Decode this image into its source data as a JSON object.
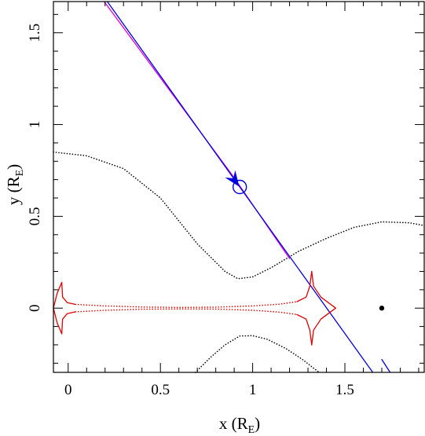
{
  "chart_data": {
    "type": "line",
    "xlabel": "x (R",
    "xlabel_sub": "E",
    "xlabel_close": ")",
    "ylabel": "y (R",
    "ylabel_sub": "E",
    "ylabel_close": ")",
    "xlim": [
      -0.08,
      1.93
    ],
    "ylim": [
      -0.35,
      1.67
    ],
    "grid": false,
    "x_ticks": [
      0,
      0.5,
      1,
      1.5
    ],
    "x_tick_labels": [
      "0",
      "0.5",
      "1",
      "1.5"
    ],
    "y_ticks": [
      0,
      0.5,
      1,
      1.5
    ],
    "y_tick_labels": [
      "0",
      "0.5",
      "1",
      "1.5"
    ],
    "series": [
      {
        "style": "dotted-black",
        "color": "#000000",
        "x": [
          -0.08,
          0.1,
          0.3,
          0.5,
          0.7,
          0.85,
          0.92,
          1.0,
          1.1,
          1.25,
          1.4,
          1.55,
          1.7,
          1.85,
          1.93
        ],
        "y": [
          0.85,
          0.83,
          0.76,
          0.6,
          0.35,
          0.2,
          0.16,
          0.17,
          0.22,
          0.31,
          0.38,
          0.44,
          0.47,
          0.465,
          0.45
        ]
      },
      {
        "style": "dotted-black",
        "color": "#000000",
        "x": [
          0.69,
          0.77,
          0.85,
          0.93,
          1.0,
          1.08,
          1.18,
          1.27,
          1.36
        ],
        "y": [
          -0.35,
          -0.27,
          -0.2,
          -0.152,
          -0.15,
          -0.17,
          -0.22,
          -0.28,
          -0.35
        ]
      },
      {
        "style": "solid-magenta",
        "color": "#dd00dd",
        "x": [
          0.195,
          0.9,
          1.2
        ],
        "y": [
          1.67,
          0.71,
          0.27
        ]
      },
      {
        "style": "solid-blue",
        "color": "#0000dd",
        "x": [
          0.212,
          0.93,
          1.651
        ],
        "y": [
          1.67,
          0.66,
          -0.35
        ]
      },
      {
        "style": "solid-blue",
        "color": "#0000dd",
        "x": [
          1.7,
          1.745
        ],
        "y": [
          -0.28,
          -0.35
        ]
      },
      {
        "style": "solid-red",
        "color": "#dd0000",
        "x": [
          -0.035,
          -0.06,
          -0.08,
          -0.06,
          -0.035
        ],
        "y": [
          0.14,
          0.08,
          0.0,
          -0.08,
          -0.14
        ]
      },
      {
        "style": "solid-red",
        "color": "#dd0000",
        "x": [
          -0.035,
          -0.03,
          -0.005,
          0.04
        ],
        "y": [
          0.14,
          0.06,
          0.03,
          0.02
        ]
      },
      {
        "style": "solid-red",
        "color": "#dd0000",
        "x": [
          -0.035,
          -0.03,
          -0.005,
          0.04
        ],
        "y": [
          -0.14,
          -0.06,
          -0.03,
          -0.02
        ]
      },
      {
        "style": "dotted-red",
        "color": "#dd0000",
        "x": [
          0.04,
          0.2,
          0.4,
          0.6,
          0.8,
          1.0,
          1.15,
          1.24
        ],
        "y": [
          0.02,
          0.012,
          0.006,
          0.004,
          0.005,
          0.012,
          0.022,
          0.035
        ]
      },
      {
        "style": "dotted-red",
        "color": "#dd0000",
        "x": [
          0.04,
          0.2,
          0.4,
          0.6,
          0.8,
          1.0,
          1.15,
          1.24
        ],
        "y": [
          -0.02,
          -0.012,
          -0.006,
          -0.004,
          -0.005,
          -0.012,
          -0.022,
          -0.035
        ]
      },
      {
        "style": "solid-red",
        "color": "#dd0000",
        "x": [
          1.24,
          1.29,
          1.31,
          1.32
        ],
        "y": [
          0.035,
          0.06,
          0.12,
          0.2
        ]
      },
      {
        "style": "solid-red",
        "color": "#dd0000",
        "x": [
          1.24,
          1.29,
          1.31,
          1.32
        ],
        "y": [
          -0.035,
          -0.06,
          -0.12,
          -0.2
        ]
      },
      {
        "style": "solid-red",
        "color": "#dd0000",
        "x": [
          1.32,
          1.33,
          1.37,
          1.45
        ],
        "y": [
          0.2,
          0.12,
          0.06,
          0.0
        ]
      },
      {
        "style": "solid-red",
        "color": "#dd0000",
        "x": [
          1.32,
          1.33,
          1.37,
          1.45
        ],
        "y": [
          -0.2,
          -0.12,
          -0.06,
          0.0
        ]
      }
    ],
    "markers": [
      {
        "kind": "filled-dot",
        "color": "#000000",
        "x": 1.7,
        "y": 0.0
      },
      {
        "kind": "open-circle",
        "color": "#0000dd",
        "x": 0.93,
        "y": 0.66
      },
      {
        "kind": "arrowhead",
        "color": "#0000dd",
        "x": 0.9,
        "y": 0.7
      }
    ]
  }
}
